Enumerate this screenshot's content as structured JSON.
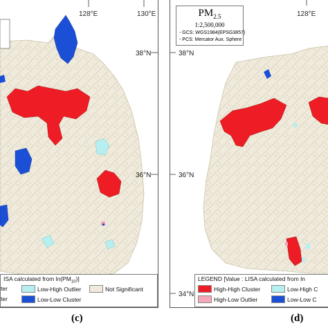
{
  "colors": {
    "high_high": "#ee1c24",
    "high_low": "#f5a7b8",
    "low_high": "#b7eef0",
    "low_low": "#1a4fd6",
    "not_significant": "#efeadb",
    "boundary": "#cbc3a8"
  },
  "panel_c": {
    "ticks": {
      "lon_128": "128°E",
      "lon_130": "130°E",
      "lat_38": "38°N",
      "lat_36": "36°N"
    },
    "legend": {
      "title": "ISA calculated from ln(PM",
      "title_sub": "10",
      "title_end": ")]",
      "items": [
        {
          "label": "ter",
          "color_key": "high_low"
        },
        {
          "label": "Low-High Outlier",
          "color_key": "low_high"
        },
        {
          "label": "Not Significant",
          "color_key": "not_significant"
        },
        {
          "label": "ter",
          "color_key": "low_low"
        },
        {
          "label": "Low-Low Cluster",
          "color_key": "low_low"
        }
      ]
    },
    "label": "(c)"
  },
  "panel_d": {
    "title": {
      "pm": "PM",
      "sub": "2.5",
      "scale": "1:2,500,000",
      "gcs": "- GCS: WGS1984(EPSG3857)",
      "pcs": "- PCS: Mercator Aux. Sphere"
    },
    "ticks": {
      "lon_128": "128°E",
      "lat_38": "38°N",
      "lat_36": "36°N",
      "lat_34": "34°N"
    },
    "legend": {
      "title": "LEGEND [Value : LISA calculated from ln",
      "items": [
        {
          "label": "High-High Cluster",
          "color_key": "high_high"
        },
        {
          "label": "Low-High C",
          "color_key": "low_high"
        },
        {
          "label": "High-Low Outlier",
          "color_key": "high_low"
        },
        {
          "label": "Low-Low C",
          "color_key": "low_low"
        }
      ]
    },
    "label": "(d)"
  }
}
